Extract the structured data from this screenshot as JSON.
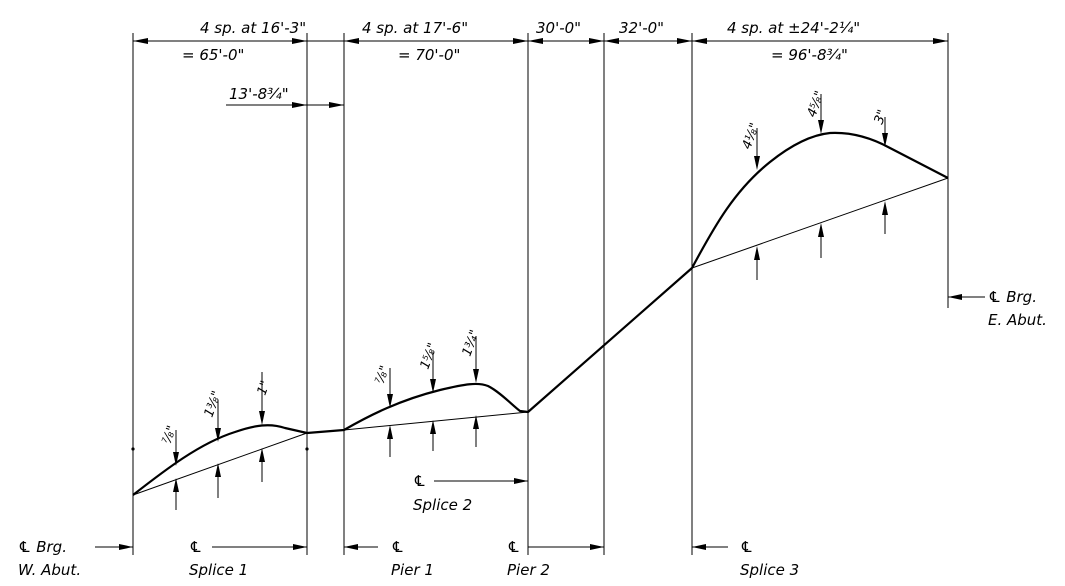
{
  "dimensions": {
    "span1_top": "4 sp. at 16'-3\"",
    "span1_bottom": "= 65'-0\"",
    "span2_top": "4 sp. at 17'-6\"",
    "span2_bottom": "= 70'-0\"",
    "span3": "30'-0\"",
    "span4": "32'-0\"",
    "span5_top": "4 sp. at ±24'-2¼\"",
    "span5_bottom": "= 96'-8¾\"",
    "offset": "13'-8¾\""
  },
  "camber_labels": {
    "s1": [
      "⅞\"",
      "1⅜\"",
      "1\""
    ],
    "s2": [
      "⅞\"",
      "1⅝\"",
      "1¾\""
    ],
    "s3": [
      "4⅛\"",
      "4⅝\"",
      "3\""
    ]
  },
  "labels": {
    "w_abut_1": "℄ Brg.",
    "w_abut_2": "W. Abut.",
    "splice1_cl": "℄",
    "splice1": "Splice 1",
    "pier1_cl": "℄",
    "pier1": "Pier 1",
    "pier2_cl": "℄",
    "pier2": "Pier 2",
    "splice2_cl": "℄",
    "splice2": "Splice 2",
    "splice3_cl": "℄",
    "splice3": "Splice 3",
    "e_abut_1": "℄ Brg.",
    "e_abut_2": "E. Abut."
  }
}
